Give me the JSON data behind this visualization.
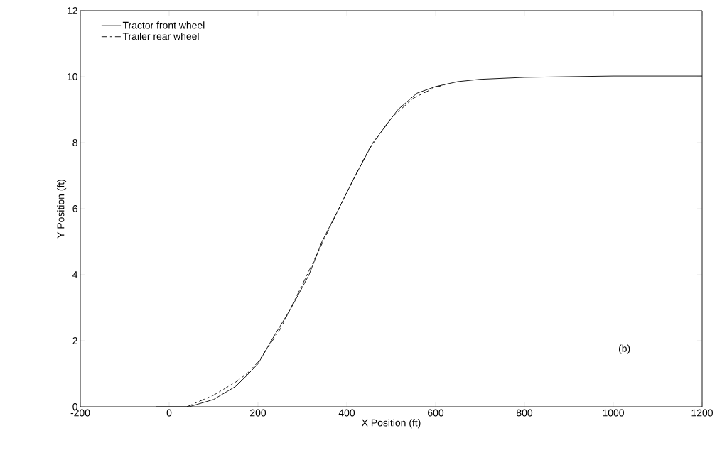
{
  "chart_data": {
    "type": "line",
    "xlabel": "X Position (ft)",
    "ylabel": "Y Position (ft)",
    "annotations": [
      "(b)"
    ],
    "xlim": [
      -200,
      1200
    ],
    "xticks": [
      -200,
      0,
      200,
      400,
      600,
      800,
      1000,
      1200
    ],
    "ylim": [
      0,
      12
    ],
    "yticks": [
      0,
      2,
      4,
      6,
      8,
      10,
      12
    ],
    "grid": false,
    "legend": "top left",
    "marker": "none",
    "series": [
      {
        "name": "Tractor front wheel",
        "color": "#000000",
        "line_style": "solid",
        "x": [
          -30,
          0,
          45,
          100,
          150,
          175,
          200,
          230,
          275,
          315,
          344,
          382,
          419,
          459,
          515,
          558,
          600,
          650,
          700,
          800,
          1000,
          1200
        ],
        "values": [
          0,
          0,
          0,
          0.22,
          0.62,
          0.95,
          1.3,
          2,
          3,
          4,
          5,
          6,
          7,
          8,
          9,
          9.5,
          9.7,
          9.85,
          9.92,
          9.98,
          10.02,
          10.02
        ]
      },
      {
        "name": "Trailer rear wheel",
        "color": "#000000",
        "line_style": "dashed",
        "x": [
          40,
          100,
          150,
          175,
          200,
          250,
          300,
          350,
          400,
          450,
          500,
          550,
          600,
          620
        ],
        "values": [
          0,
          0.35,
          0.75,
          1.0,
          1.35,
          2.35,
          3.7,
          5.1,
          6.5,
          7.8,
          8.75,
          9.35,
          9.68,
          9.75
        ]
      }
    ]
  }
}
